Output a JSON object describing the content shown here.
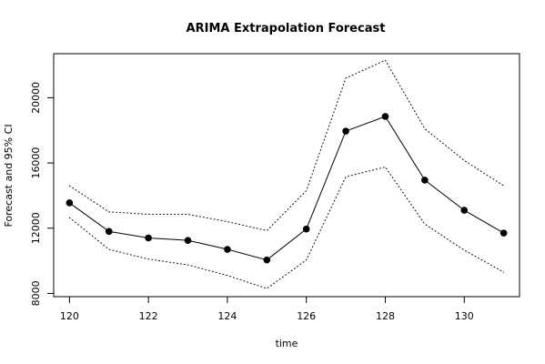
{
  "chart_data": {
    "type": "line",
    "title": "ARIMA Extrapolation Forecast",
    "xlabel": "time",
    "ylabel": "Forecast and 95% CI",
    "xlim": [
      119.6,
      131.4
    ],
    "ylim": [
      7800,
      22700
    ],
    "x_ticks": [
      120,
      122,
      124,
      126,
      128,
      130
    ],
    "x_tick_labels": [
      "120",
      "122",
      "124",
      "126",
      "128",
      "130"
    ],
    "y_ticks": [
      8000,
      12000,
      16000,
      20000
    ],
    "y_tick_labels": [
      "8000",
      "12000",
      "16000",
      "20000"
    ],
    "grid": false,
    "legend": "none",
    "x": [
      120,
      121,
      122,
      123,
      124,
      125,
      126,
      127,
      128,
      129,
      130,
      131
    ],
    "series": [
      {
        "values": [
          13550,
          11800,
          11400,
          11250,
          10700,
          10050,
          11950,
          17950,
          18850,
          14950,
          13100,
          11700
        ],
        "style": "solid-with-points",
        "color": "#000000"
      },
      {
        "values": [
          14600,
          13000,
          12850,
          12850,
          12400,
          11850,
          14300,
          21200,
          22300,
          18100,
          16150,
          14600
        ],
        "style": "dotted",
        "color": "#000000"
      },
      {
        "values": [
          12650,
          10700,
          10100,
          9750,
          9100,
          8300,
          10050,
          15150,
          15750,
          12250,
          10650,
          9300
        ],
        "style": "dotted",
        "color": "#000000"
      }
    ]
  }
}
